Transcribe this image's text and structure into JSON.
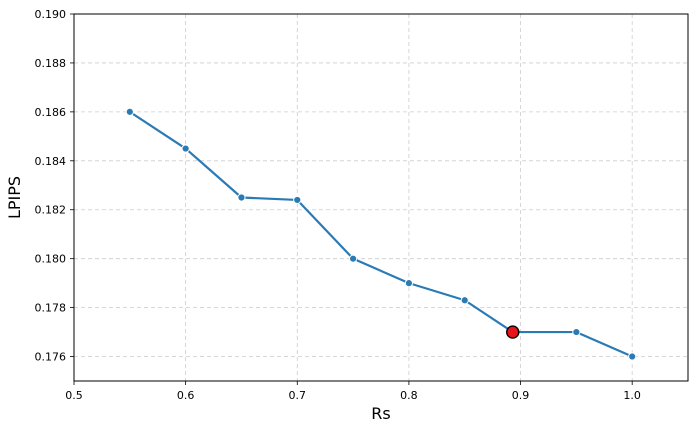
{
  "chart_data": {
    "type": "line",
    "xlabel": "Rs",
    "ylabel": "LPIPS",
    "xlim": [
      0.5,
      1.05
    ],
    "ylim": [
      0.175,
      0.19
    ],
    "xticks": [
      "0.5",
      "0.6",
      "0.7",
      "0.8",
      "0.9",
      "1.0"
    ],
    "yticks": [
      "0.176",
      "0.178",
      "0.180",
      "0.182",
      "0.184",
      "0.186",
      "0.188",
      "0.190"
    ],
    "grid": true,
    "series": [
      {
        "x": [
          0.55,
          0.6,
          0.65,
          0.7,
          0.75,
          0.8,
          0.85,
          0.893,
          0.95,
          1.0
        ],
        "y": [
          0.186,
          0.1845,
          0.1825,
          0.1824,
          0.18,
          0.179,
          0.1783,
          0.177,
          0.177,
          0.176
        ],
        "color": "#2a7ab5"
      }
    ],
    "highlight": {
      "x": 0.893,
      "y": 0.177,
      "color": "#e8141a"
    }
  }
}
